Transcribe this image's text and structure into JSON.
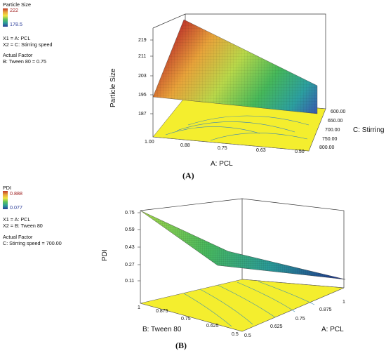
{
  "panels": [
    {
      "id": "A",
      "legend": {
        "title": "Particle Size",
        "max": "222",
        "min": "178.5",
        "max_color": "#c0392b",
        "min_color": "#2c3e9a",
        "x1": "X1 = A: PCL",
        "x2": "X2 = C: Stirring speed",
        "factor_title": "Actual Factor",
        "factor_value": "B: Tween 80 = 0.75"
      },
      "caption": "(A)"
    },
    {
      "id": "B",
      "legend": {
        "title": "PDI",
        "max": "0.888",
        "min": "0.077",
        "max_color": "#c0392b",
        "min_color": "#2c3e9a",
        "x1": "X1 = A: PCL",
        "x2": "X2 = B: Tween 80",
        "factor_title": "Actual Factor",
        "factor_value": "C: Stirring speed = 700.00"
      },
      "caption": "(B)"
    }
  ],
  "chart_data": [
    {
      "type": "surface",
      "title": "",
      "zlabel": "Particle Size",
      "xlabel": "A: PCL",
      "ylabel": "C: Stirring speed",
      "z_ticks": [
        "219",
        "211",
        "203",
        "195",
        "187"
      ],
      "x_ticks": [
        "1.00",
        "0.88",
        "0.75",
        "0.63",
        "0.50"
      ],
      "y_ticks": [
        "600.00",
        "650.00",
        "700.00",
        "750.00",
        "800.00"
      ],
      "zlim": [
        178.5,
        222
      ],
      "corners": [
        {
          "x": 1.0,
          "y": 600,
          "z": 222
        },
        {
          "x": 0.5,
          "y": 600,
          "z": 196
        },
        {
          "x": 0.5,
          "y": 800,
          "z": 186
        },
        {
          "x": 1.0,
          "y": 800,
          "z": 194
        }
      ],
      "contour_floor": true
    },
    {
      "type": "surface",
      "title": "",
      "zlabel": "PDI",
      "xlabel": "A: PCL",
      "ylabel": "B: Tween 80",
      "z_ticks": [
        "0.75",
        "0.59",
        "0.43",
        "0.27",
        "0.11"
      ],
      "x_ticks": [
        "0.5",
        "0.625",
        "0.75",
        "0.875",
        "1"
      ],
      "y_ticks": [
        "1",
        "0.875",
        "0.75",
        "0.625",
        "0.5"
      ],
      "zlim": [
        0.077,
        0.888
      ],
      "corners": [
        {
          "x": 0.5,
          "y": 1.0,
          "z": 0.75
        },
        {
          "x": 1.0,
          "y": 1.0,
          "z": 0.33
        },
        {
          "x": 1.0,
          "y": 0.5,
          "z": 0.08
        },
        {
          "x": 0.5,
          "y": 0.5,
          "z": 0.15
        }
      ],
      "contour_floor": true
    }
  ]
}
